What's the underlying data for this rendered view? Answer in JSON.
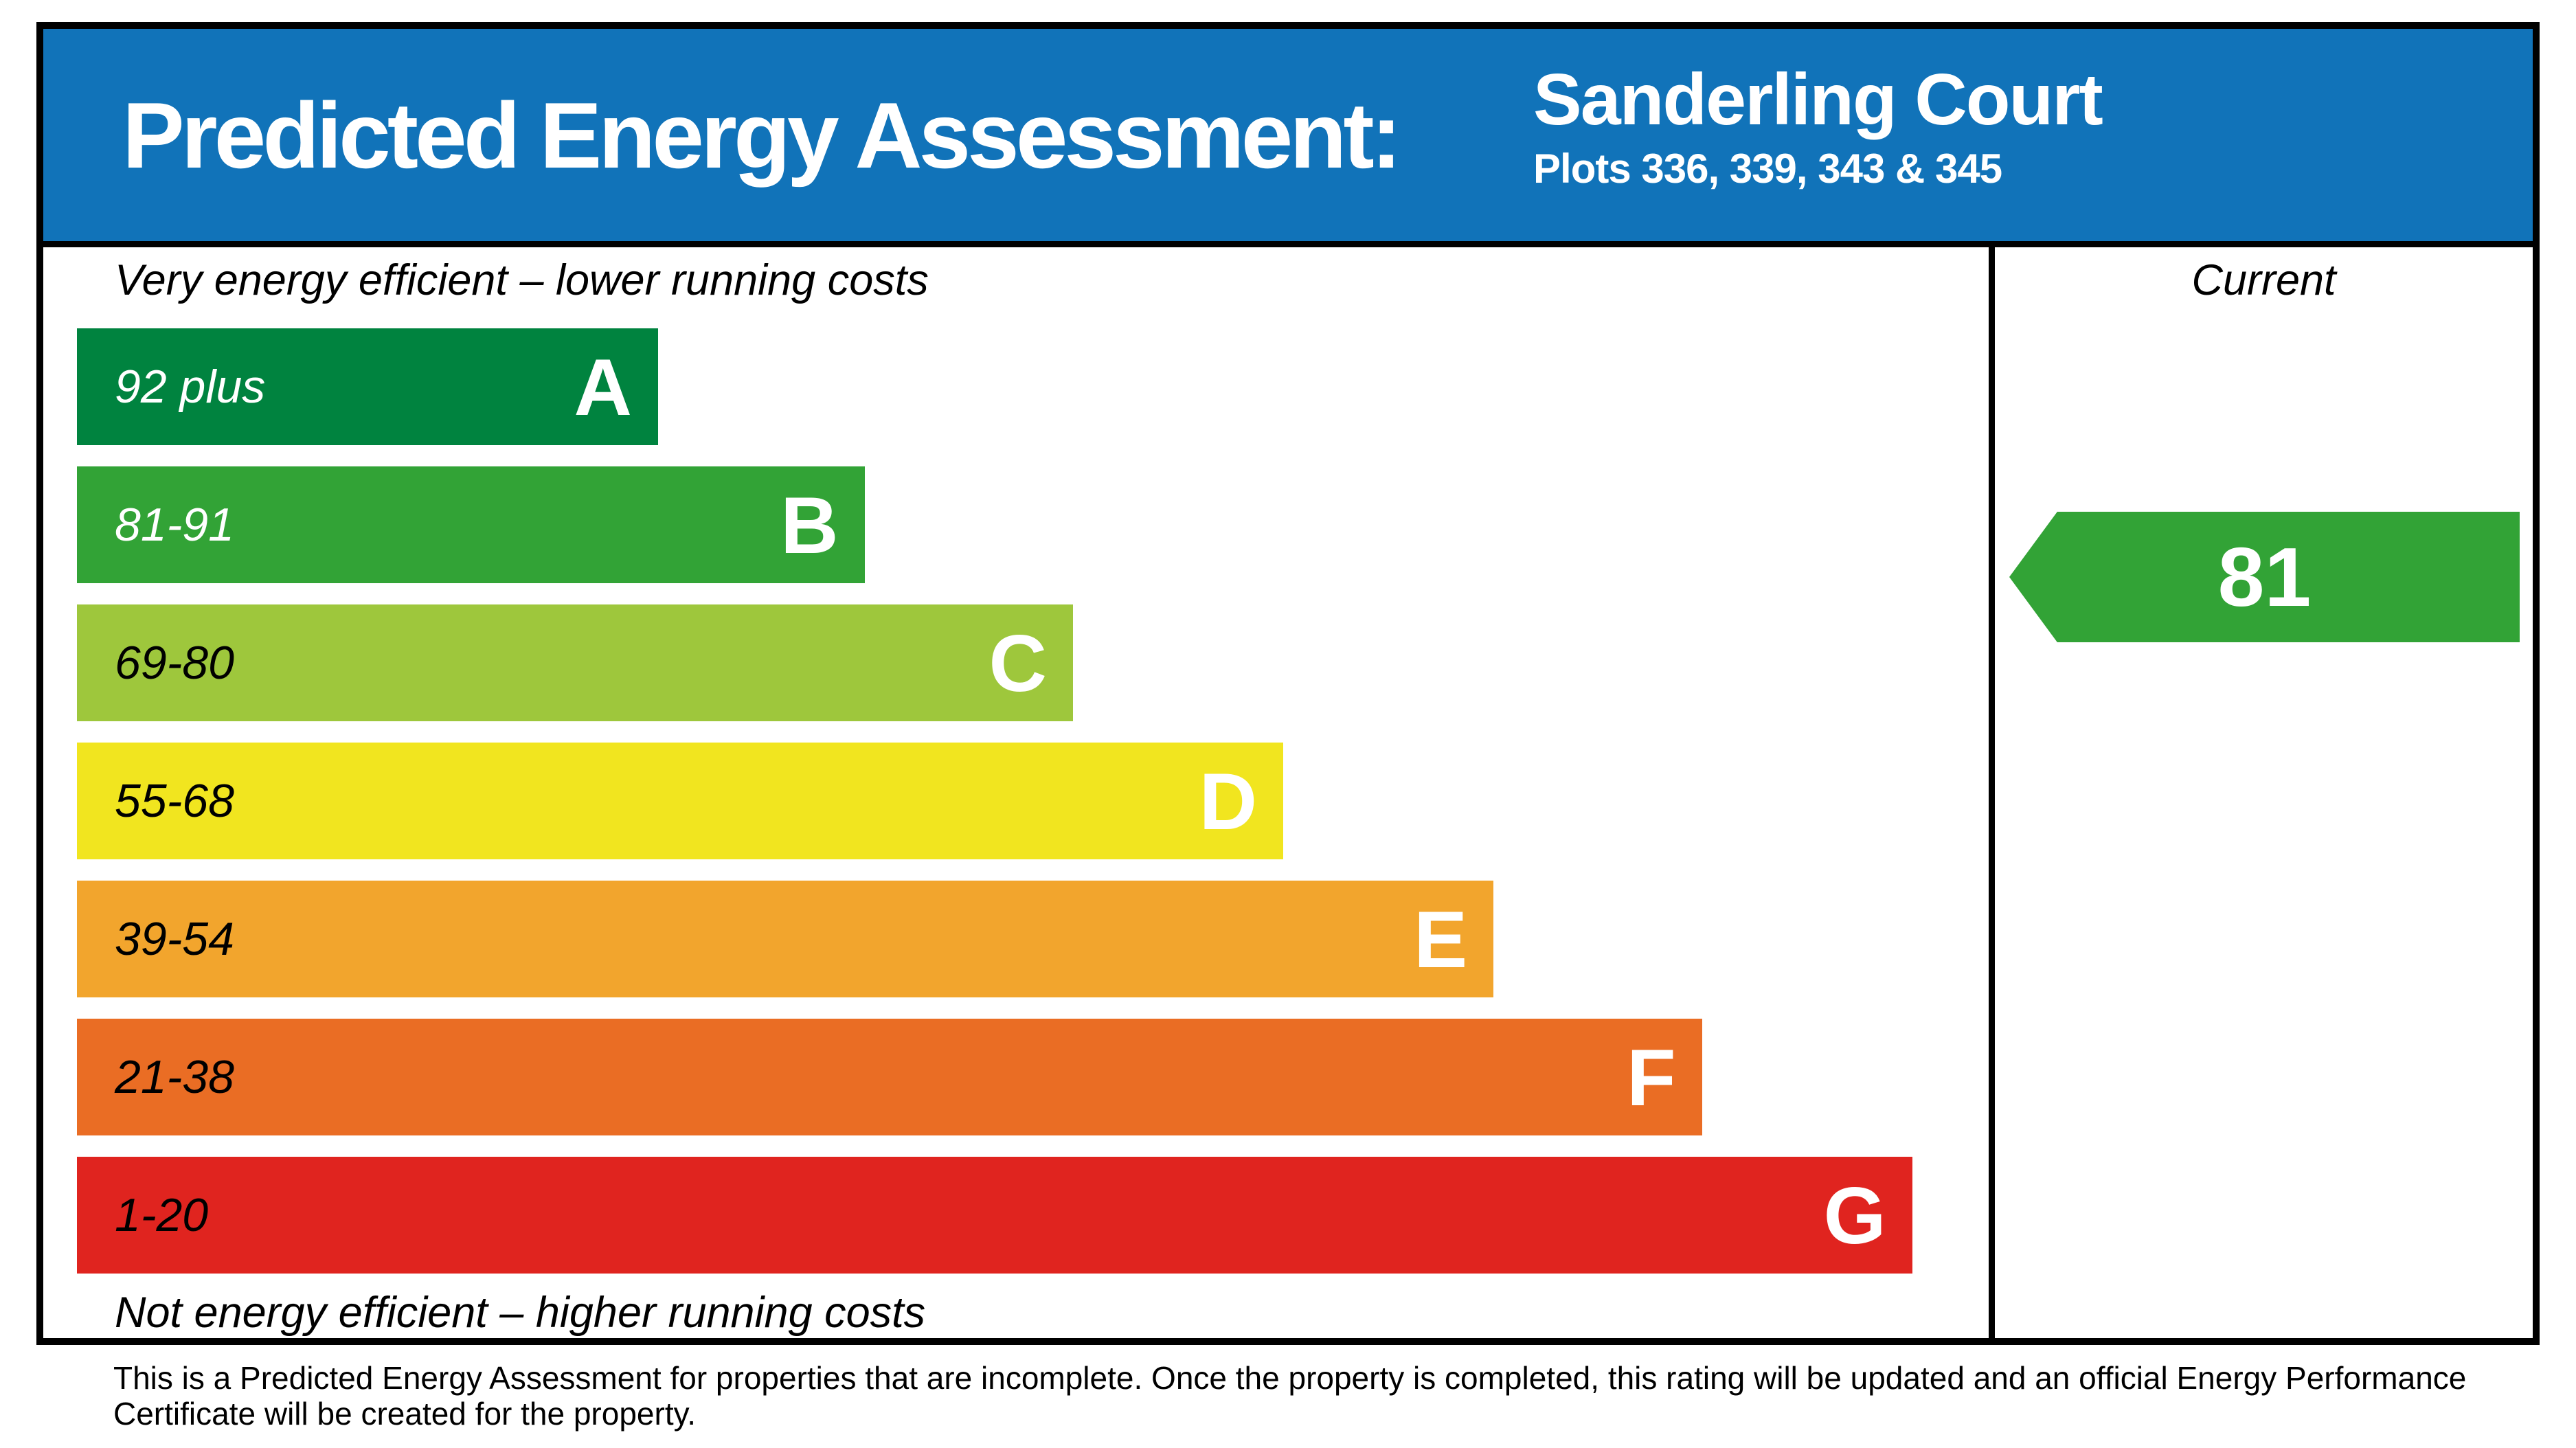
{
  "header": {
    "title": "Predicted Energy Assessment:",
    "property_name": "Sanderling Court",
    "property_plots": "Plots 336, 339, 343 & 345",
    "background_color": "#1173b9"
  },
  "chart": {
    "top_caption": "Very energy efficient – lower running costs",
    "bottom_caption": "Not energy efficient – higher running costs",
    "column_header": "Current",
    "bands": [
      {
        "letter": "A",
        "range": "92 plus",
        "color": "#00833f",
        "range_color": "#ffffff",
        "width_pct": 30.4
      },
      {
        "letter": "B",
        "range": "81-91",
        "color": "#32a336",
        "range_color": "#ffffff",
        "width_pct": 41.2
      },
      {
        "letter": "C",
        "range": "69-80",
        "color": "#9ec73c",
        "range_color": "#000000",
        "width_pct": 52.1
      },
      {
        "letter": "D",
        "range": "55-68",
        "color": "#f1e51f",
        "range_color": "#000000",
        "width_pct": 63.1
      },
      {
        "letter": "E",
        "range": "39-54",
        "color": "#f2a52d",
        "range_color": "#000000",
        "width_pct": 74.1
      },
      {
        "letter": "F",
        "range": "21-38",
        "color": "#ea6d24",
        "range_color": "#000000",
        "width_pct": 85.0
      },
      {
        "letter": "G",
        "range": "1-20",
        "color": "#e0241f",
        "range_color": "#000000",
        "width_pct": 96.0
      }
    ],
    "current": {
      "value": "81",
      "band": "B",
      "color": "#32a336"
    }
  },
  "footer": {
    "line1": "This is a Predicted Energy Assessment for properties that are incomplete. Once the property is completed, this rating will be updated and an official Energy Performance",
    "line2": "Certificate will be created for the property."
  },
  "chart_data": {
    "type": "bar",
    "title": "Predicted Energy Assessment: Sanderling Court, Plots 336, 339, 343 & 345",
    "categories": [
      "A",
      "B",
      "C",
      "D",
      "E",
      "F",
      "G"
    ],
    "band_ranges": [
      "92 plus",
      "81-91",
      "69-80",
      "55-68",
      "39-54",
      "21-38",
      "1-20"
    ],
    "values": [
      30.4,
      41.2,
      52.1,
      63.1,
      74.1,
      85.0,
      96.0
    ],
    "value_note": "bar lengths as percent of chart width (standard EPC band bars)",
    "band_colors": [
      "#00833f",
      "#32a336",
      "#9ec73c",
      "#f1e51f",
      "#f2a52d",
      "#ea6d24",
      "#e0241f"
    ],
    "current_rating": 81,
    "current_band": "B",
    "xlabel": "",
    "ylabel": "",
    "legend": "none",
    "top_caption": "Very energy efficient – lower running costs",
    "bottom_caption": "Not energy efficient – higher running costs"
  }
}
